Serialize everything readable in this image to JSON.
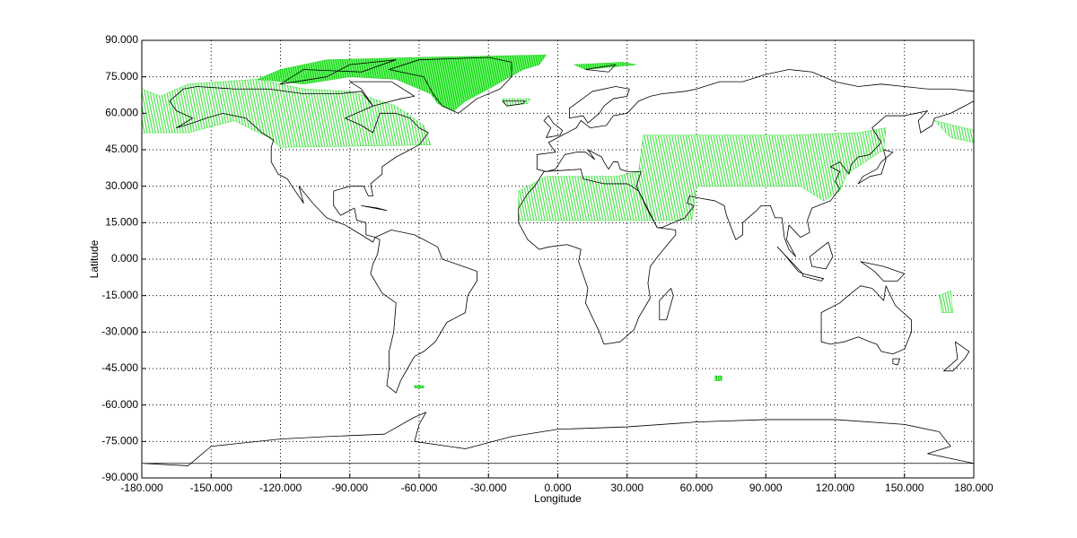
{
  "chart_data": {
    "type": "map",
    "xlabel": "Longitude",
    "ylabel": "Latitude",
    "xlim": [
      -180,
      180
    ],
    "ylim": [
      -90,
      90
    ],
    "xticks": [
      {
        "value": -180,
        "label": "-180.000"
      },
      {
        "value": -150,
        "label": "-150.000"
      },
      {
        "value": -120,
        "label": "-120.000"
      },
      {
        "value": -90,
        "label": "-90.000"
      },
      {
        "value": -60,
        "label": "-60.000"
      },
      {
        "value": -30,
        "label": "-30.000"
      },
      {
        "value": 0,
        "label": "0.000"
      },
      {
        "value": 30,
        "label": "30.000"
      },
      {
        "value": 60,
        "label": "60.000"
      },
      {
        "value": 90,
        "label": "90.000"
      },
      {
        "value": 120,
        "label": "120.000"
      },
      {
        "value": 150,
        "label": "150.000"
      },
      {
        "value": 180,
        "label": "180.000"
      }
    ],
    "yticks": [
      {
        "value": -90,
        "label": "-90.000"
      },
      {
        "value": -75,
        "label": "-75.000"
      },
      {
        "value": -60,
        "label": "-60.000"
      },
      {
        "value": -45,
        "label": "-45.000"
      },
      {
        "value": -30,
        "label": "-30.000"
      },
      {
        "value": -15,
        "label": "-15.000"
      },
      {
        "value": 0,
        "label": "0.000"
      },
      {
        "value": 15,
        "label": "15.000"
      },
      {
        "value": 30,
        "label": "30.000"
      },
      {
        "value": 45,
        "label": "45.000"
      },
      {
        "value": 60,
        "label": "60.000"
      },
      {
        "value": 75,
        "label": "75.000"
      },
      {
        "value": 90,
        "label": "90.000"
      }
    ],
    "grid": true
  }
}
